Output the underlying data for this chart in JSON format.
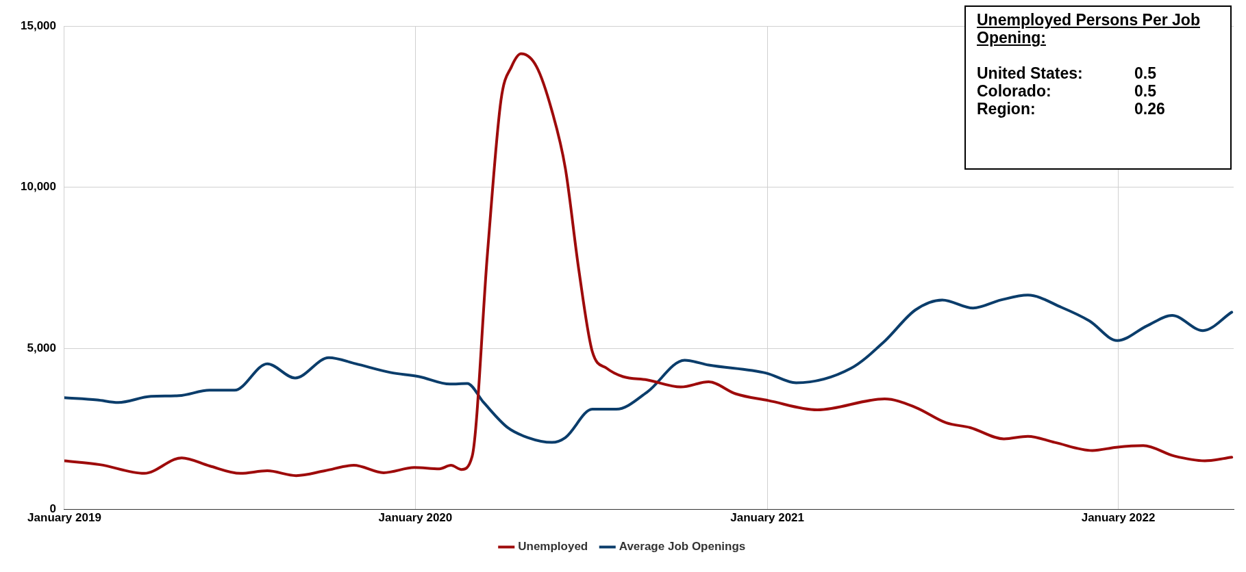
{
  "chart_data": {
    "type": "line",
    "annotations": [
      "Unemployed Persons Per Job Opening:",
      "United States:",
      "0.5",
      "Colorado:",
      "0.5",
      "Region:",
      "0.26"
    ],
    "series": [
      {
        "name": "Unemployed",
        "color": "#9e0b0b",
        "x": [
          "2019-01-01",
          "2019-02-07",
          "2019-03-25",
          "2019-05-03",
          "2019-06-01",
          "2019-07-03",
          "2019-07-31",
          "2019-08-30",
          "2019-09-29",
          "2019-10-29",
          "2019-11-29",
          "2019-12-31",
          "2020-01-26",
          "2020-02-07",
          "2020-02-18",
          "2020-02-29",
          "2020-03-16",
          "2020-03-30",
          "2020-04-10",
          "2020-04-20",
          "2020-05-06",
          "2020-05-22",
          "2020-06-05",
          "2020-06-19",
          "2020-07-03",
          "2020-07-18",
          "2020-08-04",
          "2020-08-29",
          "2020-10-03",
          "2020-11-01",
          "2020-11-29",
          "2021-01-02",
          "2021-02-22",
          "2021-05-03",
          "2021-06-04",
          "2021-07-06",
          "2021-07-31",
          "2021-09-04",
          "2021-09-29",
          "2021-10-27",
          "2021-12-05",
          "2021-12-30",
          "2022-01-27",
          "2022-02-28",
          "2022-04-01",
          "2022-04-29"
        ],
        "values": [
          1510,
          1390,
          1120,
          1600,
          1350,
          1120,
          1200,
          1050,
          1200,
          1370,
          1140,
          1300,
          1260,
          1370,
          1240,
          1640,
          7950,
          12690,
          13740,
          14140,
          13740,
          12370,
          10580,
          7430,
          4900,
          4380,
          4120,
          4020,
          3800,
          3960,
          3590,
          3380,
          3090,
          3430,
          3170,
          2690,
          2540,
          2190,
          2270,
          2080,
          1830,
          1930,
          1980,
          1660,
          1510,
          1620
        ]
      },
      {
        "name": "Average Job Openings",
        "color": "#0b3d6b",
        "x": [
          "2019-01-01",
          "2019-02-04",
          "2019-02-26",
          "2019-04-01",
          "2019-04-30",
          "2019-06-01",
          "2019-06-27",
          "2019-07-31",
          "2019-08-29",
          "2019-10-03",
          "2019-10-31",
          "2019-12-06",
          "2020-01-05",
          "2020-02-06",
          "2020-02-24",
          "2020-03-12",
          "2020-04-06",
          "2020-04-27",
          "2020-05-22",
          "2020-06-05",
          "2020-07-03",
          "2020-07-28",
          "2020-08-29",
          "2020-10-07",
          "2020-11-01",
          "2020-12-31",
          "2021-01-31",
          "2021-03-29",
          "2021-05-03",
          "2021-06-04",
          "2021-07-02",
          "2021-08-03",
          "2021-09-01",
          "2021-09-29",
          "2021-11-03",
          "2021-12-02",
          "2021-12-31",
          "2022-01-31",
          "2022-02-26",
          "2022-03-30",
          "2022-04-29"
        ],
        "values": [
          3470,
          3400,
          3320,
          3510,
          3530,
          3700,
          3700,
          4520,
          4080,
          4710,
          4520,
          4250,
          4120,
          3890,
          3910,
          3320,
          2540,
          2230,
          2080,
          2230,
          3110,
          3110,
          3640,
          4630,
          4480,
          4230,
          3930,
          4380,
          5220,
          6190,
          6500,
          6250,
          6500,
          6650,
          6270,
          5850,
          5240,
          5700,
          6020,
          5550,
          6120
        ]
      }
    ],
    "xlim": [
      "2019-01-01",
      "2022-05-01"
    ],
    "xticks": [
      {
        "value": "2019-01-01",
        "label": "January 2019"
      },
      {
        "value": "2020-01-01",
        "label": "January 2020"
      },
      {
        "value": "2021-01-01",
        "label": "January 2021"
      },
      {
        "value": "2022-01-01",
        "label": "January 2022"
      }
    ],
    "ylim": [
      0,
      15000
    ],
    "yticks": [
      0,
      {
        "value": 5000,
        "label": "5,000"
      },
      {
        "value": 10000,
        "label": "10,000"
      },
      {
        "value": 15000,
        "label": "15,000"
      }
    ],
    "grid": true,
    "legend": "bottom",
    "marker": "none",
    "line_style": "solid"
  }
}
